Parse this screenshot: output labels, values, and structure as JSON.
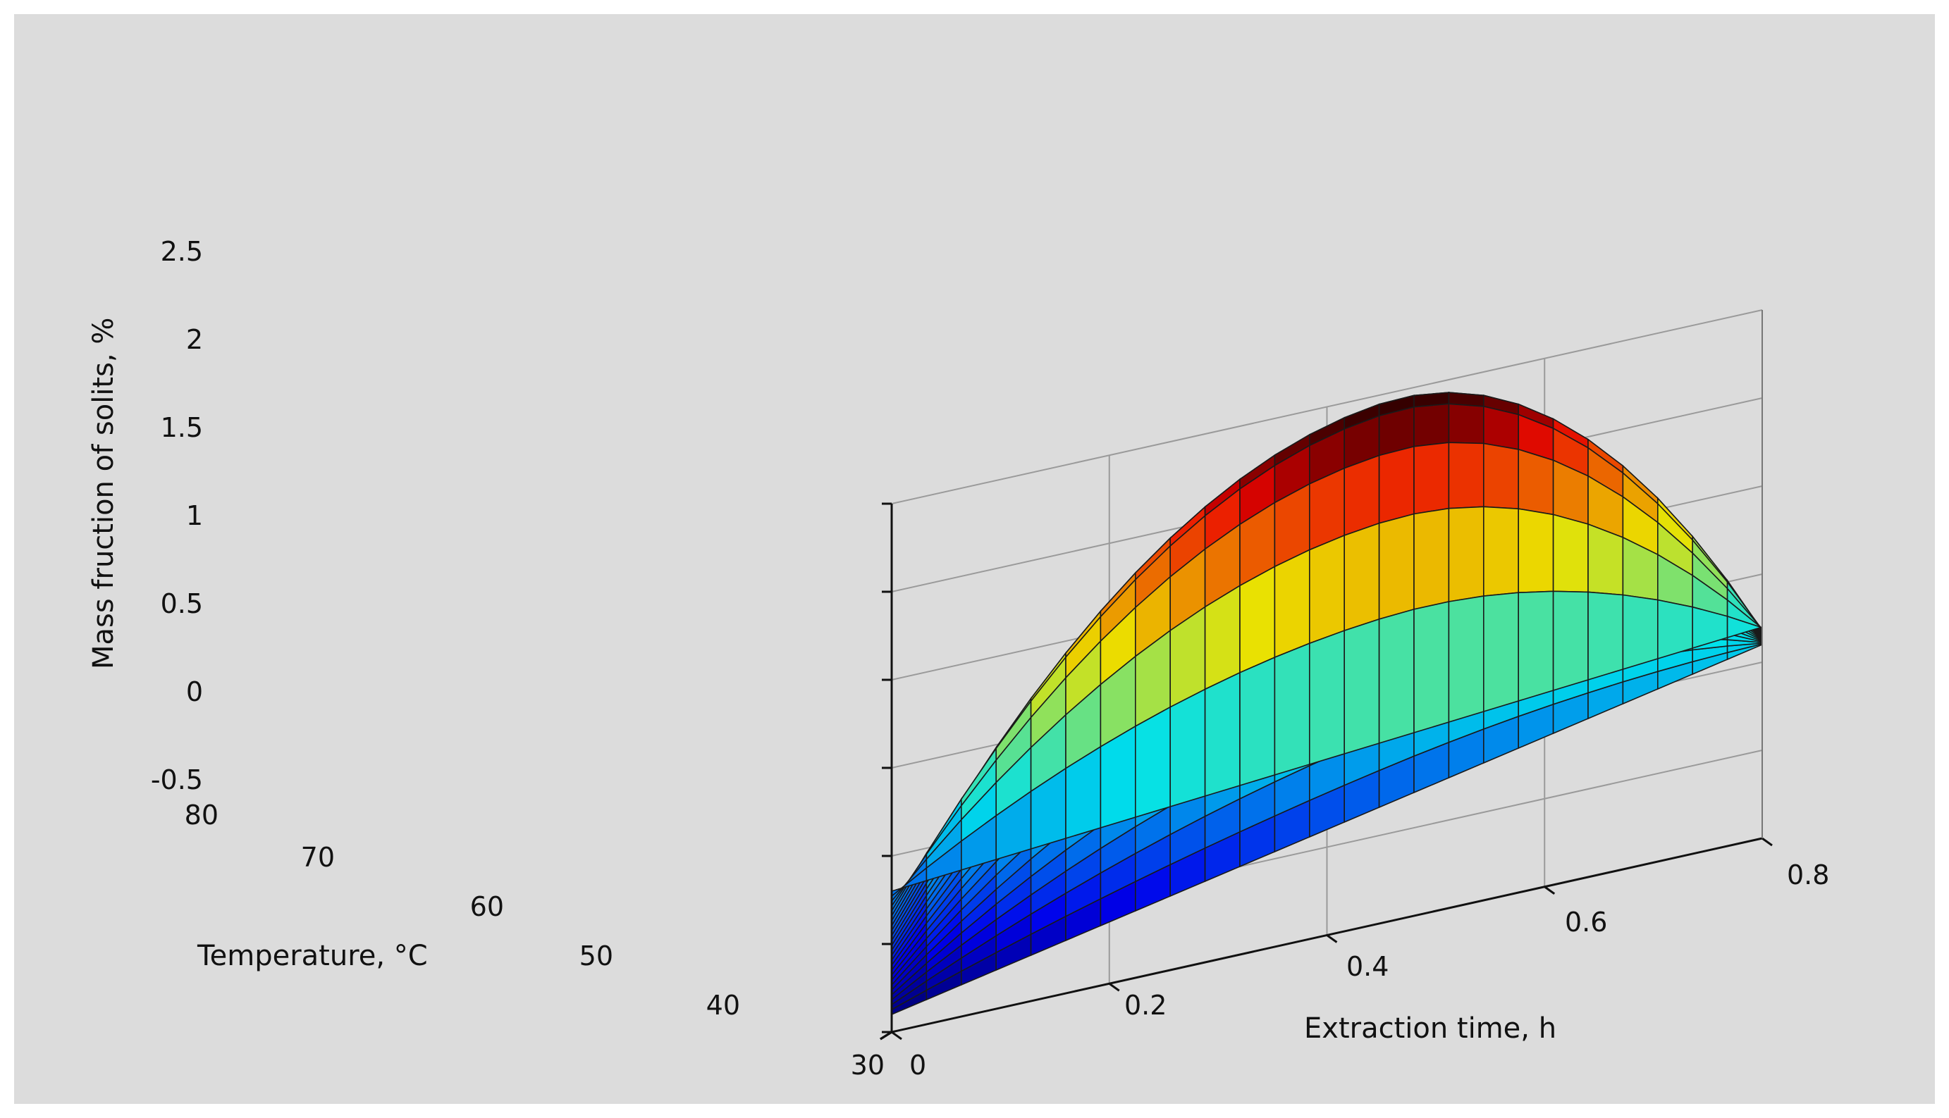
{
  "chart_data": {
    "type": "surface3d",
    "z_axis": {
      "label": "Mass fruction of solits, %",
      "ticks": [
        "2.5",
        "2",
        "1.5",
        "1",
        "0.5",
        "0",
        "-0.5"
      ],
      "range": [
        -0.5,
        2.5
      ]
    },
    "temperature_axis": {
      "label": "Temperature, °C",
      "ticks": [
        "80",
        "70",
        "60",
        "50",
        "40",
        "30"
      ],
      "range": [
        30,
        80
      ]
    },
    "time_axis": {
      "label": "Extraction time, h",
      "ticks": [
        "0",
        "0.2",
        "0.4",
        "0.6",
        "0.8"
      ],
      "range": [
        0,
        0.8
      ]
    },
    "surface": {
      "grid": 25,
      "corner_values": {
        "T80_t0": 0.3,
        "T80_t0.8": 0.7,
        "T30_t0": -0.4,
        "T30_t0.8": 0.6
      },
      "peak": {
        "temperature": 70,
        "time": 0.45,
        "value": 2.45
      }
    },
    "grid": true,
    "colormap": "jet"
  }
}
